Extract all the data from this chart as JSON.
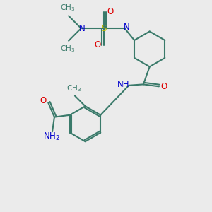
{
  "bg_color": "#ebebeb",
  "bond_color": "#3a7a6a",
  "bond_width": 1.5,
  "atom_colors": {
    "N": "#0000cc",
    "O": "#dd0000",
    "S": "#bbbb00",
    "C": "#3a7a6a"
  },
  "font_size": 8.5,
  "fig_size": [
    3.0,
    3.0
  ],
  "dpi": 100
}
